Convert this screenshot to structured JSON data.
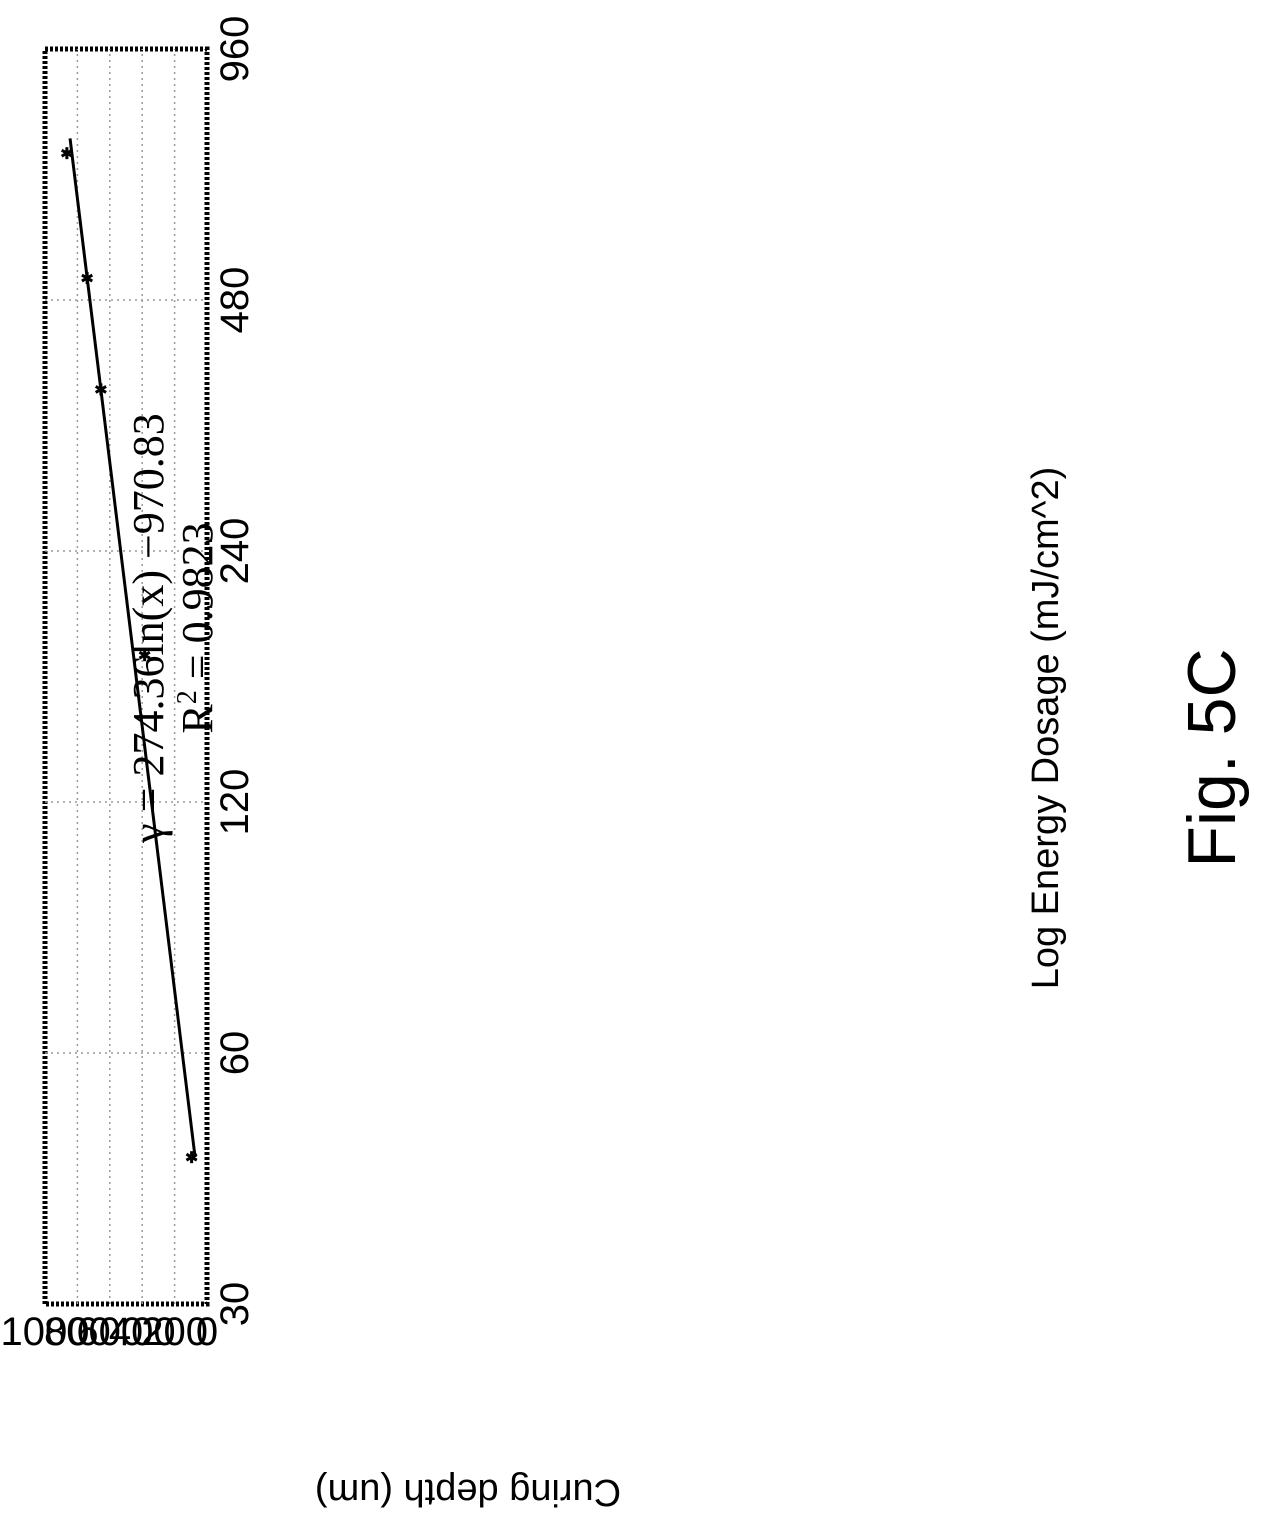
{
  "figure": {
    "label": "Fig. 5C"
  },
  "chart_data": {
    "type": "scatter",
    "xlabel": "Log Energy Dosage (mJ/cm^2)",
    "ylabel": "Curing depth (um)",
    "x_scale": "log",
    "xlim": [
      30,
      960
    ],
    "ylim": [
      0,
      1000
    ],
    "x_ticks": [
      30,
      60,
      120,
      240,
      480,
      960
    ],
    "y_ticks": [
      0,
      200,
      400,
      600,
      800,
      1000
    ],
    "grid": true,
    "points": [
      {
        "x": 45,
        "y": 95
      },
      {
        "x": 180,
        "y": 385
      },
      {
        "x": 375,
        "y": 655
      },
      {
        "x": 510,
        "y": 740
      },
      {
        "x": 720,
        "y": 865
      }
    ],
    "trendline": {
      "type": "logarithmic",
      "a": 274.36,
      "b": -970.83,
      "x_range": [
        45,
        750
      ],
      "equation_text": "γ = 274.36ln(x) −970.83",
      "r2_prefix": "R",
      "r2_sup": "2",
      "r2_value_text": " = 0.9823"
    }
  }
}
